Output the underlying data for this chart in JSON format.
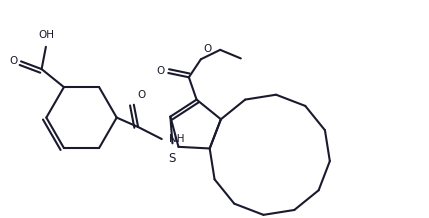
{
  "bg_color": "#ffffff",
  "line_color": "#1a1a2e",
  "text_color": "#1a1a2e",
  "lw": 1.5,
  "fs": 7.5,
  "xlim": [
    0,
    10
  ],
  "ylim": [
    0,
    5
  ]
}
